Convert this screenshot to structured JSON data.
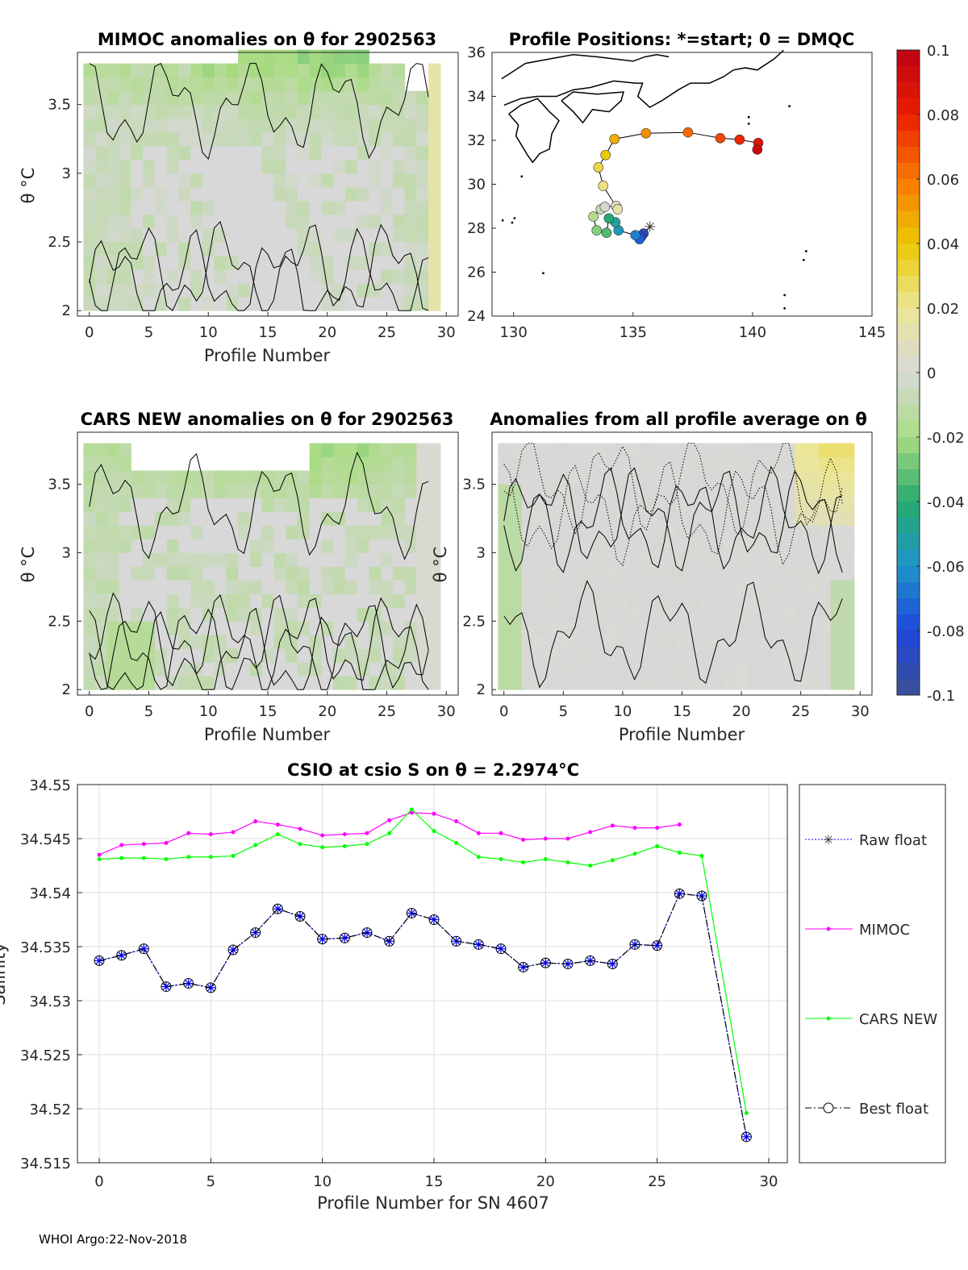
{
  "footer": "WHOI Argo:22-Nov-2018",
  "colors": {
    "cars": "#00ff00",
    "mimoc": "#ff00ff",
    "best": "#000000",
    "raw": "#0000ff",
    "grid": "#dcdcdc",
    "land": "#000000"
  },
  "chart_data": [
    {
      "id": "mimoc",
      "type": "heatmap",
      "title": "MIMOC anomalies on θ  for 2902563",
      "xlabel": "Profile Number",
      "ylabel": "θ °C",
      "xticks": [
        "0",
        "5",
        "10",
        "15",
        "20",
        "25",
        "30"
      ],
      "yticks": [
        "2",
        "2.5",
        "3",
        "3.5"
      ],
      "xlim": [
        -1,
        31
      ],
      "ylim": [
        1.96,
        3.88
      ],
      "note": "anomaly field mostly between -0.03 and 0.01, profiles 0-29"
    },
    {
      "id": "map",
      "type": "scatter",
      "title": "Profile Positions: *=start; 0 = DMQC",
      "xticks": [
        "130",
        "135",
        "140",
        "145"
      ],
      "yticks": [
        "24",
        "26",
        "28",
        "30",
        "32",
        "34",
        "36"
      ],
      "xlim": [
        129.1,
        145
      ],
      "ylim": [
        24,
        36
      ],
      "start": {
        "lon": 135.71,
        "lat": 28.05
      },
      "track": [
        [
          135.44,
          27.76
        ],
        [
          135.34,
          27.61
        ],
        [
          135.27,
          27.5
        ],
        [
          135.1,
          27.68
        ],
        [
          134.39,
          27.9
        ],
        [
          134.26,
          28.27
        ],
        [
          133.99,
          28.45
        ],
        [
          133.89,
          27.79
        ],
        [
          133.48,
          27.9
        ],
        [
          133.34,
          28.53
        ],
        [
          133.65,
          28.86
        ],
        [
          133.82,
          28.97
        ],
        [
          134.29,
          29.01
        ],
        [
          134.36,
          28.86
        ],
        [
          133.75,
          29.93
        ],
        [
          133.55,
          30.77
        ],
        [
          133.85,
          31.33
        ],
        [
          134.22,
          32.06
        ],
        [
          135.54,
          32.32
        ],
        [
          137.3,
          32.36
        ],
        [
          138.65,
          32.1
        ],
        [
          139.46,
          32.03
        ],
        [
          140.24,
          31.88
        ],
        [
          140.2,
          31.58
        ]
      ]
    },
    {
      "id": "cars",
      "type": "heatmap",
      "title": "CARS NEW anomalies on θ for 2902563",
      "xlabel": "Profile Number",
      "ylabel": "θ °C",
      "xticks": [
        "0",
        "5",
        "10",
        "15",
        "20",
        "25",
        "30"
      ],
      "yticks": [
        "2",
        "2.5",
        "3",
        "3.5"
      ],
      "xlim": [
        -1,
        31
      ],
      "ylim": [
        1.96,
        3.88
      ]
    },
    {
      "id": "avg",
      "type": "heatmap",
      "title": "Anomalies from all profile average on θ",
      "xlabel": "Profile Number",
      "ylabel": "θ °C",
      "xticks": [
        "0",
        "5",
        "10",
        "15",
        "20",
        "25",
        "30"
      ],
      "yticks": [
        "2",
        "2.5",
        "3",
        "3.5"
      ],
      "xlim": [
        -1,
        31
      ],
      "ylim": [
        1.96,
        3.88
      ]
    },
    {
      "id": "colorbar",
      "type": "colorbar",
      "range": [
        -0.1,
        0.1
      ],
      "ticks": [
        "0.1",
        "0.08",
        "0.06",
        "0.04",
        "0.02",
        "0",
        "-0.02",
        "-0.04",
        "-0.06",
        "-0.08",
        "-0.1"
      ]
    },
    {
      "id": "csio",
      "type": "line",
      "title": "CSIO at csio S on θ = 2.2974°C",
      "xlabel": "Profile Number for SN 4607",
      "ylabel": "Salinity",
      "xlim": [
        -1,
        31
      ],
      "ylim": [
        34.515,
        34.55
      ],
      "xticks": [
        "0",
        "5",
        "10",
        "15",
        "20",
        "25",
        "30"
      ],
      "yticks": [
        "34.515",
        "34.52",
        "34.525",
        "34.53",
        "34.535",
        "34.54",
        "34.545",
        "34.55"
      ],
      "grid": true,
      "legend": [
        "Raw float",
        "MIMOC",
        "CARS NEW",
        "Best float"
      ],
      "legend_position": "right-outside",
      "series": [
        {
          "name": "Raw float",
          "x": [
            0,
            1,
            2,
            3,
            4,
            5,
            6,
            7,
            8,
            9,
            10,
            11,
            12,
            13,
            14,
            15,
            16,
            17,
            18,
            19,
            20,
            21,
            22,
            23,
            24,
            25,
            26,
            27,
            29
          ],
          "values": [
            34.5337,
            34.5342,
            34.5348,
            34.5313,
            34.5316,
            34.5312,
            34.5347,
            34.5363,
            34.5385,
            34.5378,
            34.5357,
            34.5358,
            34.5363,
            34.5355,
            34.5381,
            34.5375,
            34.5355,
            34.5352,
            34.5348,
            34.5331,
            34.5335,
            34.5334,
            34.5337,
            34.5334,
            34.5352,
            34.5351,
            34.5399,
            34.5397,
            34.5174
          ]
        },
        {
          "name": "MIMOC",
          "x": [
            0,
            1,
            2,
            3,
            4,
            5,
            6,
            7,
            8,
            9,
            10,
            11,
            12,
            13,
            14,
            15,
            16,
            17,
            18,
            19,
            20,
            21,
            22,
            23,
            24,
            25,
            26
          ],
          "values": [
            34.5435,
            34.5444,
            34.5445,
            34.5446,
            34.5455,
            34.5454,
            34.5456,
            34.5466,
            34.5463,
            34.5459,
            34.5453,
            34.5454,
            34.5455,
            34.5467,
            34.5474,
            34.5473,
            34.5466,
            34.5455,
            34.5455,
            34.5449,
            34.545,
            34.545,
            34.5456,
            34.5462,
            34.546,
            34.546,
            34.5463
          ]
        },
        {
          "name": "CARS NEW",
          "x": [
            0,
            1,
            2,
            3,
            4,
            5,
            6,
            7,
            8,
            9,
            10,
            11,
            12,
            13,
            14,
            15,
            16,
            17,
            18,
            19,
            20,
            21,
            22,
            23,
            24,
            25,
            26,
            27,
            29
          ],
          "values": [
            34.5431,
            34.5432,
            34.5432,
            34.5431,
            34.5433,
            34.5433,
            34.5434,
            34.5444,
            34.5454,
            34.5445,
            34.5442,
            34.5443,
            34.5445,
            34.5455,
            34.5477,
            34.5457,
            34.5446,
            34.5433,
            34.5431,
            34.5428,
            34.5431,
            34.5428,
            34.5425,
            34.543,
            34.5436,
            34.5443,
            34.5437,
            34.5434,
            34.5196
          ]
        },
        {
          "name": "Best float",
          "x": [
            0,
            1,
            2,
            3,
            4,
            5,
            6,
            7,
            8,
            9,
            10,
            11,
            12,
            13,
            14,
            15,
            16,
            17,
            18,
            19,
            20,
            21,
            22,
            23,
            24,
            25,
            26,
            27,
            29
          ],
          "values": [
            34.5337,
            34.5342,
            34.5348,
            34.5313,
            34.5316,
            34.5312,
            34.5347,
            34.5363,
            34.5385,
            34.5378,
            34.5357,
            34.5358,
            34.5363,
            34.5355,
            34.5381,
            34.5375,
            34.5355,
            34.5352,
            34.5348,
            34.5331,
            34.5335,
            34.5334,
            34.5337,
            34.5334,
            34.5352,
            34.5351,
            34.5399,
            34.5397,
            34.5174
          ]
        }
      ]
    }
  ]
}
